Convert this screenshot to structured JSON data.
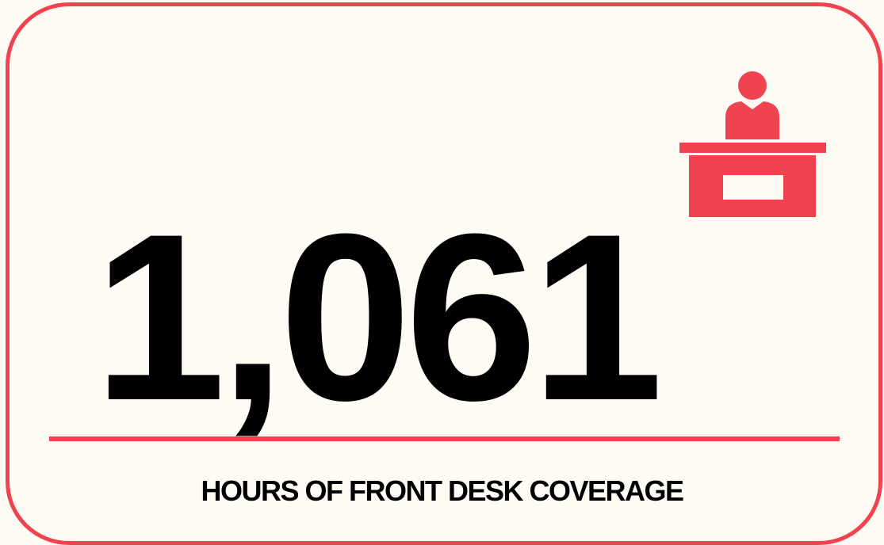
{
  "stat": {
    "value": "1,061",
    "label": "HOURS OF FRONT DESK COVERAGE"
  }
}
